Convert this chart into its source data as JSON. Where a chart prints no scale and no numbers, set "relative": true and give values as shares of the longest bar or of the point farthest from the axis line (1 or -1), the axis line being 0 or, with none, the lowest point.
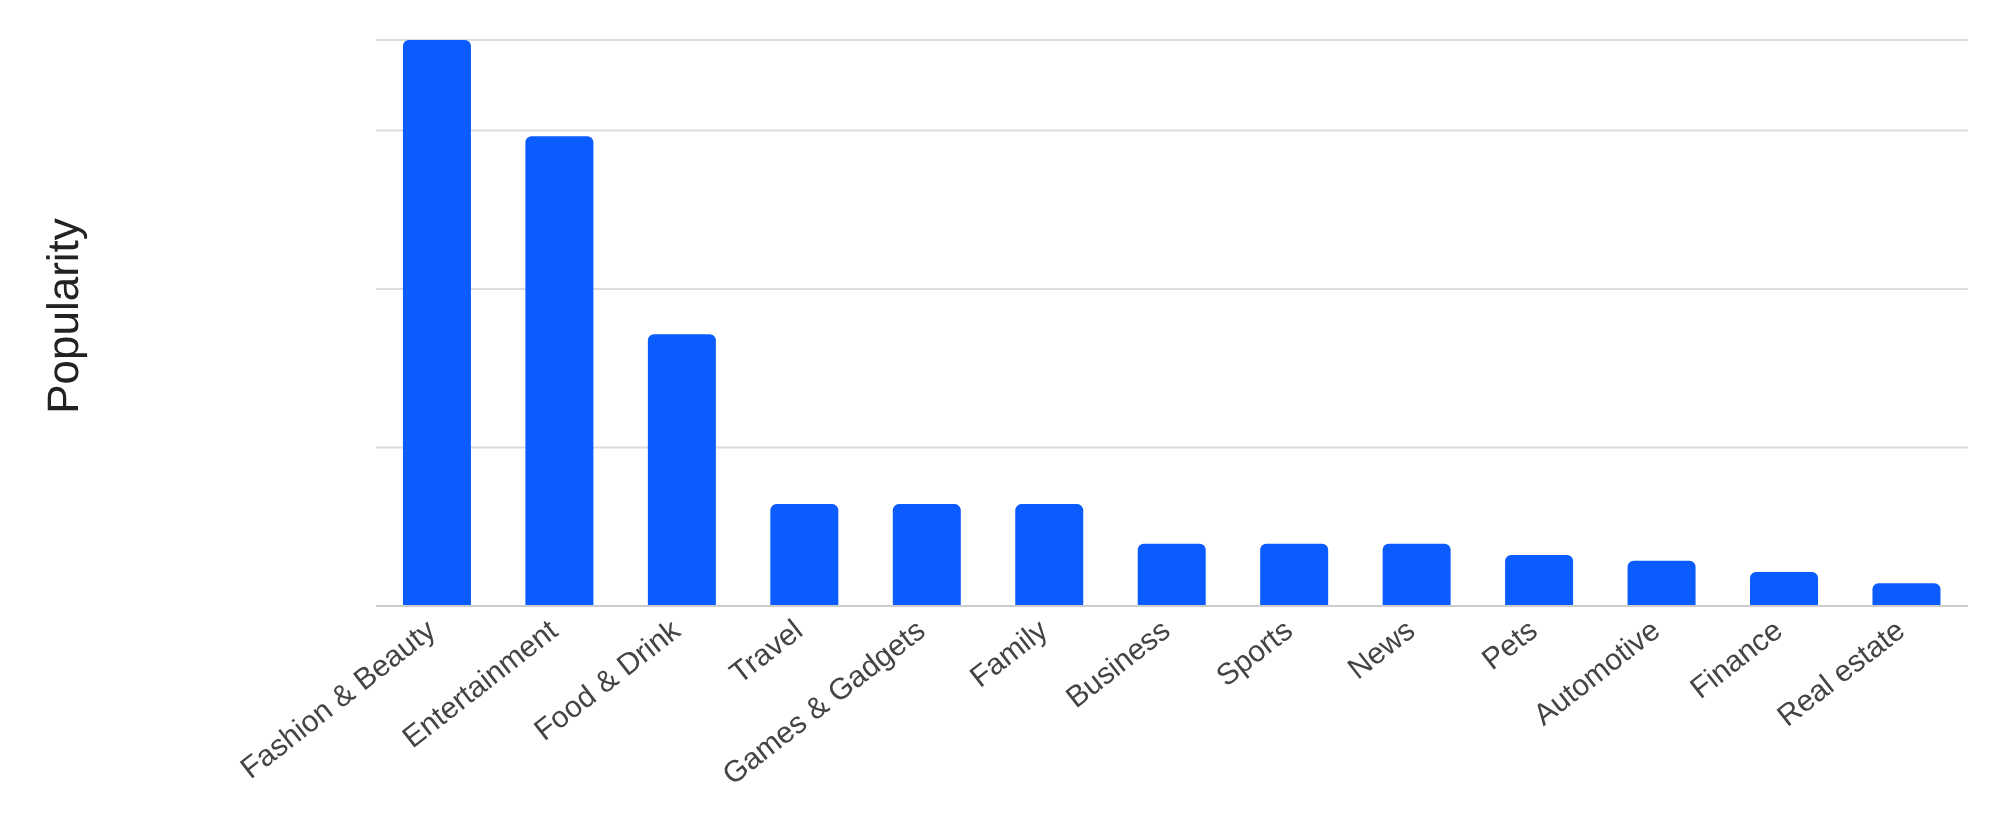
{
  "chart_data": {
    "type": "bar",
    "ylabel": "Popularity",
    "relative": true,
    "grid": "y",
    "color": "#0a5cff",
    "categories": [
      "Fashion & Beauty",
      "Entertainment",
      "Food & Drink",
      "Travel",
      "Games & Gadgets",
      "Family",
      "Business",
      "Sports",
      "News",
      "Pets",
      "Automotive",
      "Finance",
      "Real estate"
    ],
    "values": [
      1,
      0.83,
      0.48,
      0.18,
      0.18,
      0.18,
      0.11,
      0.11,
      0.11,
      0.09,
      0.08,
      0.06,
      0.04
    ]
  }
}
